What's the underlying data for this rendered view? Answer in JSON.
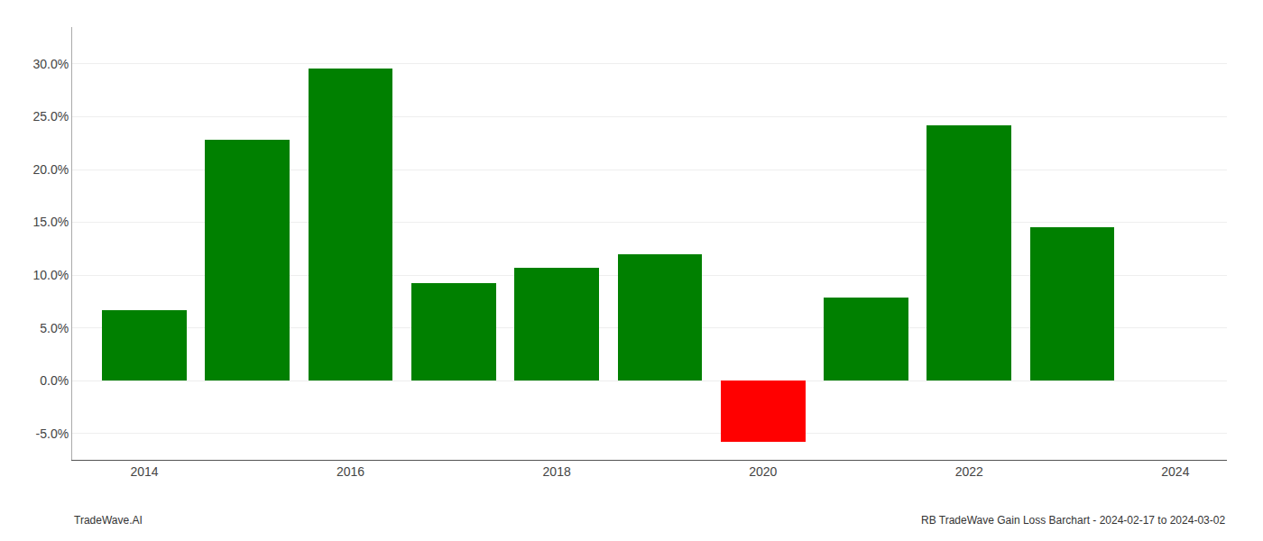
{
  "chart_data": {
    "type": "bar",
    "x": [
      2014,
      2015,
      2016,
      2017,
      2018,
      2019,
      2020,
      2021,
      2022,
      2023
    ],
    "values": [
      0.067,
      0.228,
      0.296,
      0.092,
      0.107,
      0.12,
      -0.058,
      0.079,
      0.242,
      0.145
    ],
    "colors": [
      "#008000",
      "#008000",
      "#008000",
      "#008000",
      "#008000",
      "#008000",
      "#ff0000",
      "#008000",
      "#008000",
      "#008000"
    ],
    "xlim": [
      2013.3,
      2024.5
    ],
    "xticks": [
      2014,
      2016,
      2018,
      2020,
      2022,
      2024
    ],
    "ylim": [
      -0.075,
      0.335
    ],
    "yticks": [
      {
        "value": -0.05,
        "label": "-5.0%"
      },
      {
        "value": 0.0,
        "label": "0.0%"
      },
      {
        "value": 0.05,
        "label": "5.0%"
      },
      {
        "value": 0.1,
        "label": "10.0%"
      },
      {
        "value": 0.15,
        "label": "15.0%"
      },
      {
        "value": 0.2,
        "label": "20.0%"
      },
      {
        "value": 0.25,
        "label": "25.0%"
      },
      {
        "value": 0.3,
        "label": "30.0%"
      }
    ],
    "grid": true,
    "annotations": [
      "TradeWave.AI",
      "RB TradeWave Gain Loss Barchart - 2024-02-17 to 2024-03-02"
    ]
  }
}
